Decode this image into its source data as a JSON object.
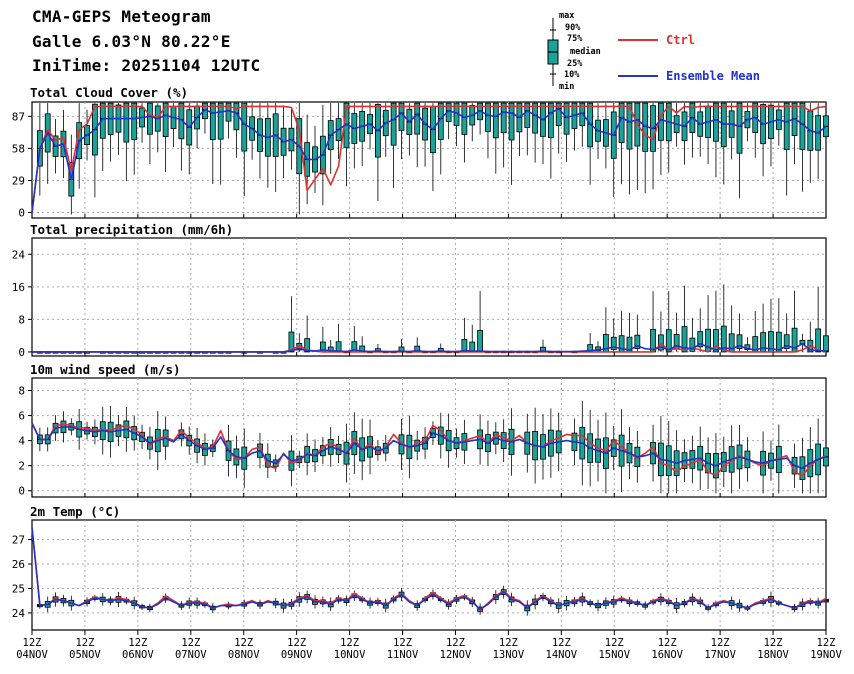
{
  "header": {
    "title": "CMA-GEPS Meteogram",
    "location": "Galle 6.03°N 80.22°E",
    "init_time": "IniTime: 20251104 12UTC"
  },
  "legend": {
    "box_labels": [
      "max",
      "90%",
      "75%",
      "median",
      "25%",
      "10%",
      "min"
    ],
    "ctrl_label": "Ctrl",
    "mean_label": "Ensemble Mean"
  },
  "colors": {
    "ctrl": "#e03030",
    "mean": "#2233cc",
    "box_fill": "#1aa39a",
    "box_fill_dark": "#0d6f6a",
    "grid": "#aaaaaa"
  },
  "x_axis": {
    "labels": [
      [
        "12Z",
        "04NOV"
      ],
      [
        "12Z",
        "05NOV"
      ],
      [
        "12Z",
        "06NOV"
      ],
      [
        "12Z",
        "07NOV"
      ],
      [
        "12Z",
        "08NOV"
      ],
      [
        "12Z",
        "09NOV"
      ],
      [
        "12Z",
        "10NOV"
      ],
      [
        "12Z",
        "11NOV"
      ],
      [
        "12Z",
        "12NOV"
      ],
      [
        "12Z",
        "13NOV"
      ],
      [
        "12Z",
        "14NOV"
      ],
      [
        "12Z",
        "15NOV"
      ],
      [
        "12Z",
        "16NOV"
      ],
      [
        "12Z",
        "17NOV"
      ],
      [
        "12Z",
        "18NOV"
      ],
      [
        "12Z",
        "19NOV"
      ]
    ]
  },
  "chart_data": [
    {
      "type": "box+line",
      "title": "Total Cloud Cover (%)",
      "ylim": [
        -5,
        100
      ],
      "yticks": [
        0,
        29,
        58,
        87
      ],
      "time_step_hours": 6,
      "ctrl": [
        0,
        58,
        75,
        65,
        68,
        38,
        75,
        80,
        96,
        96,
        96,
        96,
        96,
        96,
        96,
        88,
        86,
        96,
        96,
        96,
        96,
        96,
        96,
        96,
        96,
        96,
        94,
        96,
        96,
        96,
        96,
        96,
        96,
        95,
        75,
        20,
        30,
        40,
        25,
        42,
        96,
        96,
        96,
        96,
        96,
        96,
        96,
        96,
        96,
        96,
        96,
        96,
        96,
        96,
        96,
        96,
        96,
        96,
        96,
        96,
        96,
        96,
        96,
        96,
        96,
        96,
        96,
        96,
        96,
        96,
        96,
        96,
        96,
        96,
        96,
        96,
        96,
        80,
        70,
        66,
        88,
        96,
        90,
        96,
        95,
        96,
        96,
        96,
        96,
        96,
        96,
        96,
        96,
        96,
        96,
        96,
        96,
        96,
        96,
        92,
        95,
        96
      ],
      "mean": [
        0,
        58,
        72,
        60,
        62,
        30,
        65,
        70,
        75,
        85,
        85,
        85,
        85,
        85,
        86,
        87,
        85,
        88,
        86,
        84,
        77,
        86,
        93,
        90,
        91,
        92,
        90,
        80,
        76,
        70,
        68,
        70,
        64,
        66,
        60,
        48,
        48,
        52,
        70,
        75,
        80,
        76,
        78,
        80,
        74,
        81,
        84,
        90,
        82,
        89,
        80,
        75,
        85,
        92,
        90,
        86,
        88,
        92,
        88,
        87,
        91,
        90,
        86,
        92,
        88,
        84,
        90,
        94,
        86,
        88,
        90,
        80,
        74,
        72,
        70,
        86,
        82,
        84,
        78,
        76,
        84,
        82,
        80,
        78,
        86,
        80,
        82,
        84,
        80,
        80,
        78,
        84,
        86,
        80,
        82,
        84,
        82,
        85,
        80,
        74,
        72,
        78
      ]
    },
    {
      "type": "box+line",
      "title": "Total precipitation (mm/6h)",
      "ylim": [
        -1,
        28
      ],
      "yticks": [
        0,
        8,
        16,
        24
      ],
      "time_step_hours": 6,
      "ctrl": [
        0,
        0,
        0,
        0,
        0,
        0,
        0,
        0,
        0,
        0,
        0,
        0,
        0,
        0,
        0,
        0,
        0,
        0,
        0,
        0,
        0,
        0,
        0,
        0,
        0,
        0,
        0,
        0,
        0,
        0,
        0,
        0,
        0,
        0.5,
        1.5,
        0.5,
        0.2,
        0,
        0,
        0,
        0,
        0,
        0,
        0,
        0,
        0,
        0,
        0,
        0,
        0,
        0,
        0,
        0,
        0,
        0,
        0,
        0,
        0,
        0,
        0,
        0,
        0,
        0,
        0,
        0,
        0,
        0,
        0,
        0,
        0,
        0,
        0,
        0,
        0,
        0,
        0,
        0,
        0,
        0,
        0,
        2,
        0.5,
        0.8,
        0.5,
        1,
        0.5,
        0,
        1.5,
        0.5,
        0,
        0,
        0,
        0,
        0,
        0,
        0,
        0,
        0,
        0.5,
        1.5,
        0.5,
        0
      ],
      "mean": [
        0,
        0,
        0,
        0,
        0,
        0,
        0,
        0,
        0,
        0,
        0,
        0,
        0,
        0,
        0,
        0,
        0,
        0,
        0,
        0,
        0,
        0,
        0,
        0,
        0,
        0,
        0,
        0,
        0,
        0,
        0,
        0,
        0,
        0.3,
        0.8,
        0.3,
        0.2,
        0.5,
        0.3,
        0.2,
        0.1,
        0.5,
        0.2,
        0.1,
        0.2,
        0.1,
        0.1,
        0.2,
        0.1,
        0.3,
        0.1,
        0.1,
        0.2,
        0.1,
        0.1,
        0.3,
        0.2,
        0.2,
        0.1,
        0.1,
        0.1,
        0.1,
        0.1,
        0.1,
        0.1,
        0.2,
        0.1,
        0.1,
        0.1,
        0.1,
        0.2,
        0.3,
        0.5,
        0.8,
        1.2,
        0.8,
        0.5,
        1.5,
        0.8,
        0.6,
        1.2,
        0.5,
        1.5,
        1.0,
        0.8,
        2.0,
        1.2,
        0.5,
        1.0,
        0.8,
        1.5,
        0.8,
        0.5,
        1.0,
        0.8,
        0.5,
        1.5,
        1.0,
        2.0,
        0.5,
        0.3,
        0.2
      ]
    },
    {
      "type": "box+line",
      "title": "10m wind speed (m/s)",
      "ylim": [
        -0.5,
        9
      ],
      "yticks": [
        0,
        2,
        4,
        6,
        8
      ],
      "time_step_hours": 6,
      "ctrl": [
        5.4,
        4.1,
        4.1,
        5.2,
        5.3,
        5.2,
        5.0,
        5.0,
        4.8,
        4.9,
        4.8,
        5.1,
        5.2,
        4.9,
        4.5,
        3.6,
        4.2,
        4.3,
        4.0,
        4.8,
        4.2,
        3.8,
        3.4,
        3.5,
        4.8,
        3.2,
        2.5,
        2.6,
        3.3,
        3.5,
        2.0,
        1.8,
        3.0,
        2.2,
        2.4,
        3.0,
        2.8,
        3.5,
        3.8,
        3.4,
        2.9,
        4.2,
        3.2,
        3.8,
        3.0,
        3.5,
        4.5,
        3.8,
        3.4,
        3.8,
        4.0,
        5.2,
        4.8,
        4.0,
        3.8,
        4.0,
        4.2,
        4.4,
        3.8,
        4.5,
        4.2,
        4.0,
        4.4,
        3.8,
        3.6,
        3.5,
        4.0,
        4.2,
        4.5,
        4.4,
        4.4,
        3.8,
        3.4,
        3.2,
        4.0,
        3.5,
        3.0,
        2.6,
        3.0,
        3.5,
        2.2,
        2.0,
        1.5,
        2.0,
        2.2,
        2.5,
        1.5,
        1.2,
        2.0,
        2.4,
        2.8,
        2.5,
        2.2,
        2.0,
        2.4,
        2.6,
        2.8,
        1.5,
        1.2,
        2.0,
        2.5,
        2.8
      ],
      "mean": [
        5.4,
        4.1,
        4.1,
        5.0,
        5.1,
        5.1,
        4.9,
        4.8,
        4.7,
        4.8,
        4.7,
        4.8,
        4.9,
        4.6,
        4.3,
        3.8,
        4.0,
        4.2,
        3.9,
        4.5,
        4.0,
        3.6,
        3.3,
        3.4,
        4.3,
        3.2,
        2.7,
        2.6,
        3.0,
        3.2,
        2.4,
        2.2,
        2.9,
        2.4,
        2.5,
        2.9,
        2.8,
        3.2,
        3.5,
        3.3,
        3.0,
        3.8,
        3.3,
        3.5,
        3.2,
        3.4,
        4.0,
        3.7,
        3.5,
        3.6,
        3.8,
        4.6,
        4.4,
        4.0,
        3.8,
        3.9,
        4.0,
        4.1,
        3.8,
        4.2,
        4.0,
        3.9,
        4.1,
        3.8,
        3.6,
        3.5,
        3.8,
        3.9,
        4.0,
        3.9,
        3.8,
        3.4,
        3.2,
        3.0,
        3.4,
        3.2,
        3.0,
        2.7,
        2.8,
        3.0,
        2.5,
        2.4,
        2.2,
        2.4,
        2.5,
        2.6,
        2.2,
        2.0,
        2.3,
        2.5,
        2.7,
        2.5,
        2.3,
        2.2,
        2.4,
        2.5,
        2.6,
        2.0,
        1.8,
        2.2,
        2.5,
        2.7
      ]
    },
    {
      "type": "box+line",
      "title": "2m Temp (°C)",
      "ylim": [
        23.3,
        27.8
      ],
      "yticks": [
        24,
        25,
        26,
        27
      ],
      "time_step_hours": 6,
      "ctrl": [
        27.5,
        24.3,
        24.35,
        24.6,
        24.5,
        24.4,
        24.3,
        24.5,
        24.65,
        24.55,
        24.5,
        24.6,
        24.55,
        24.4,
        24.25,
        24.2,
        24.4,
        24.7,
        24.5,
        24.3,
        24.45,
        24.45,
        24.4,
        24.2,
        24.3,
        24.35,
        24.3,
        24.4,
        24.5,
        24.35,
        24.5,
        24.4,
        24.3,
        24.4,
        24.6,
        24.7,
        24.5,
        24.5,
        24.4,
        24.6,
        24.5,
        24.8,
        24.6,
        24.4,
        24.5,
        24.3,
        24.6,
        24.8,
        24.5,
        24.3,
        24.6,
        24.85,
        24.6,
        24.4,
        24.6,
        24.7,
        24.5,
        24.1,
        24.4,
        24.7,
        24.9,
        24.6,
        24.5,
        24.2,
        24.5,
        24.7,
        24.5,
        24.3,
        24.4,
        24.5,
        24.6,
        24.4,
        24.3,
        24.4,
        24.5,
        24.6,
        24.5,
        24.4,
        24.3,
        24.5,
        24.6,
        24.5,
        24.3,
        24.4,
        24.6,
        24.5,
        24.2,
        24.4,
        24.5,
        24.4,
        24.3,
        24.2,
        24.4,
        24.5,
        24.6,
        24.4,
        24.3,
        24.2,
        24.4,
        24.5,
        24.4,
        24.6
      ],
      "mean": [
        27.5,
        24.3,
        24.35,
        24.55,
        24.5,
        24.4,
        24.3,
        24.45,
        24.6,
        24.55,
        24.5,
        24.55,
        24.5,
        24.4,
        24.25,
        24.2,
        24.35,
        24.6,
        24.45,
        24.3,
        24.4,
        24.4,
        24.35,
        24.2,
        24.3,
        24.3,
        24.3,
        24.35,
        24.45,
        24.35,
        24.45,
        24.4,
        24.3,
        24.35,
        24.55,
        24.65,
        24.45,
        24.45,
        24.35,
        24.55,
        24.5,
        24.7,
        24.55,
        24.4,
        24.45,
        24.3,
        24.55,
        24.75,
        24.45,
        24.3,
        24.55,
        24.75,
        24.55,
        24.35,
        24.55,
        24.65,
        24.45,
        24.15,
        24.35,
        24.65,
        24.85,
        24.55,
        24.45,
        24.2,
        24.45,
        24.65,
        24.45,
        24.3,
        24.4,
        24.45,
        24.55,
        24.4,
        24.3,
        24.4,
        24.45,
        24.55,
        24.45,
        24.4,
        24.3,
        24.45,
        24.55,
        24.45,
        24.3,
        24.4,
        24.55,
        24.45,
        24.2,
        24.35,
        24.45,
        24.4,
        24.3,
        24.2,
        24.35,
        24.45,
        24.55,
        24.4,
        24.3,
        24.2,
        24.35,
        24.45,
        24.4,
        24.5
      ]
    }
  ]
}
